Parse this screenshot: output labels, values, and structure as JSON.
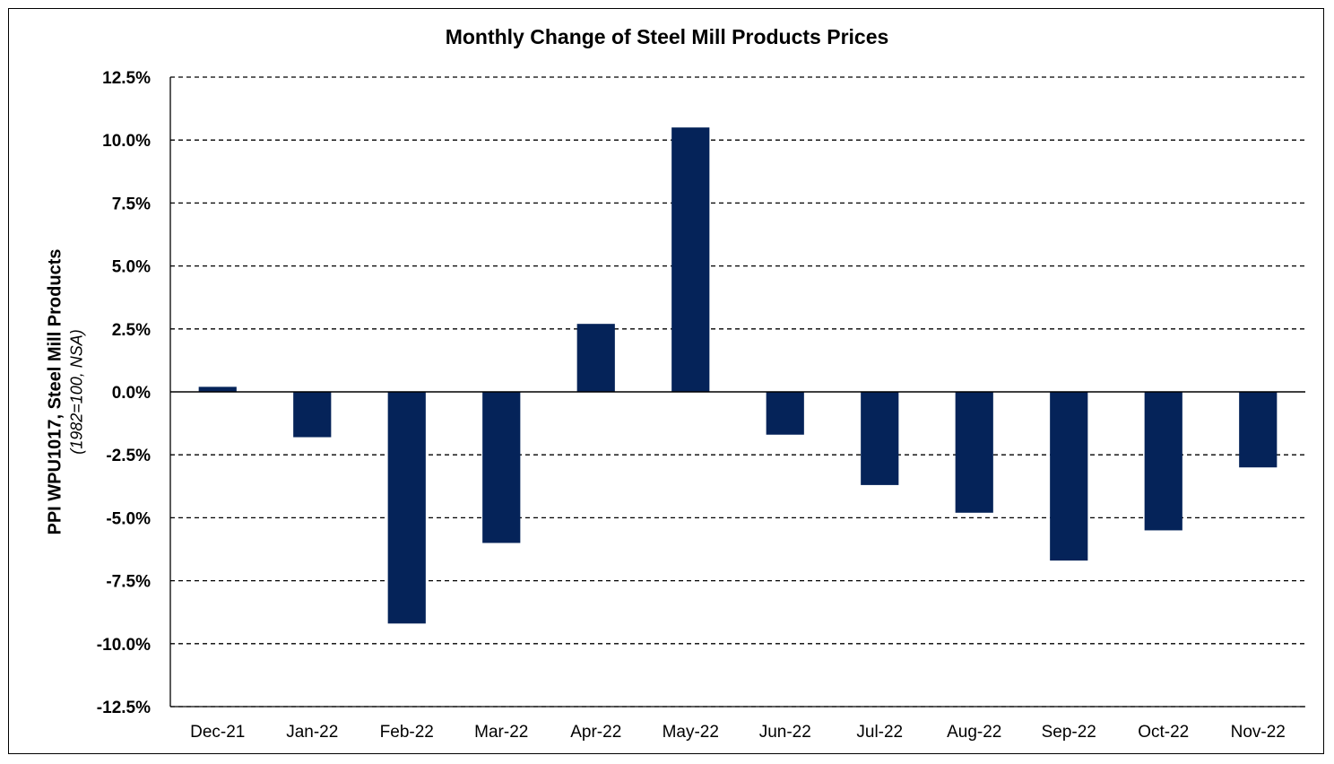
{
  "chart_data": {
    "type": "bar",
    "title": "Monthly Change of Steel Mill Products Prices",
    "ylabel": "PPI WPU1017, Steel Mill Products",
    "ylabel_sub": "(1982=100, NSA)",
    "xlabel": "",
    "categories": [
      "Dec-21",
      "Jan-22",
      "Feb-22",
      "Mar-22",
      "Apr-22",
      "May-22",
      "Jun-22",
      "Jul-22",
      "Aug-22",
      "Sep-22",
      "Oct-22",
      "Nov-22"
    ],
    "values": [
      0.2,
      -1.8,
      -9.2,
      -6.0,
      2.7,
      10.5,
      -1.7,
      -3.7,
      -4.8,
      -6.7,
      -5.5,
      -3.0
    ],
    "ylim": [
      -12.5,
      12.5
    ],
    "yticks": [
      12.5,
      10.0,
      7.5,
      5.0,
      2.5,
      0.0,
      -2.5,
      -5.0,
      -7.5,
      -10.0,
      -12.5
    ],
    "ytick_labels": [
      "12.5%",
      "10.0%",
      "7.5%",
      "5.0%",
      "2.5%",
      "0.0%",
      "-2.5%",
      "-5.0%",
      "-7.5%",
      "-10.0%",
      "-12.5%"
    ],
    "grid": "dashed-horizontal",
    "legend": "none",
    "bar_color": "#052359"
  }
}
